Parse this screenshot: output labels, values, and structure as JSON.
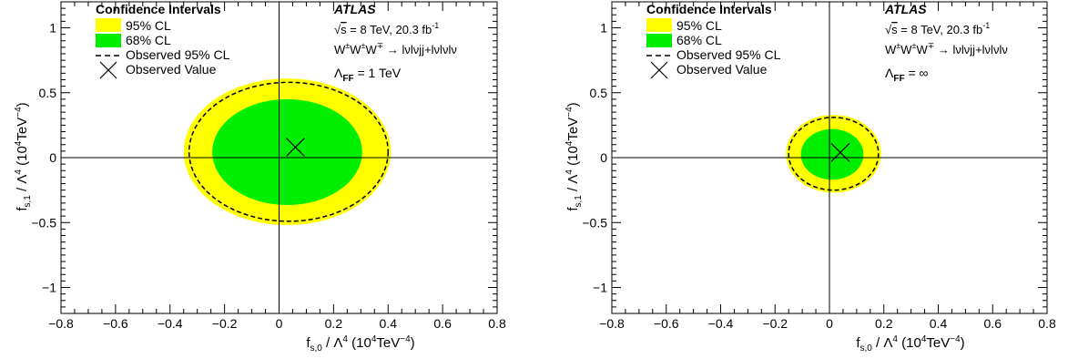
{
  "chart_data": [
    {
      "type": "contour",
      "xlabel": "f_{s,0} / Λ^4 (10^4TeV^-4)",
      "ylabel": "f_{s,1} / Λ^4 (10^4TeV^-4)",
      "xlim": [
        -0.8,
        0.8
      ],
      "ylim": [
        -1.2,
        1.2
      ],
      "xticks": [
        -0.8,
        -0.6,
        -0.4,
        -0.2,
        0,
        0.2,
        0.4,
        0.6,
        0.8
      ],
      "yticks": [
        -1,
        -0.5,
        0,
        0.5,
        1
      ],
      "legend": {
        "title": "Confidence Intervals",
        "entries": [
          "95% CL",
          "68% CL",
          "Observed 95% CL",
          "Observed Value"
        ],
        "placement": "top-left"
      },
      "annotations": {
        "experiment": "ATLAS",
        "energy": "√s = 8 TeV, 20.3 fb⁻¹",
        "process": "W±W±W∓ → lνlνjj+lνlνlν",
        "cutoff_label": "Λ",
        "cutoff_sub": "FF",
        "cutoff_value": "= 1 TeV"
      },
      "colors": {
        "cl95": "#ffff00",
        "cl68": "#00ee00",
        "observed": "#000000"
      },
      "regions": {
        "cl95": {
          "x_range": [
            -0.35,
            0.41
          ],
          "y_range": [
            -0.52,
            0.61
          ]
        },
        "cl68": {
          "x_range": [
            -0.245,
            0.305
          ],
          "y_range": [
            -0.365,
            0.45
          ]
        },
        "observed_95": {
          "x_range": [
            -0.33,
            0.4
          ],
          "y_range": [
            -0.49,
            0.58
          ]
        }
      },
      "observed_value": {
        "x": 0.06,
        "y": 0.08
      }
    },
    {
      "type": "contour",
      "xlabel": "f_{s,0} / Λ^4 (10^4TeV^-4)",
      "ylabel": "f_{s,1} / Λ^4 (10^4TeV^-4)",
      "xlim": [
        -0.8,
        0.8
      ],
      "ylim": [
        -1.2,
        1.2
      ],
      "xticks": [
        -0.8,
        -0.6,
        -0.4,
        -0.2,
        0,
        0.2,
        0.4,
        0.6,
        0.8
      ],
      "yticks": [
        -1,
        -0.5,
        0,
        0.5,
        1
      ],
      "legend": {
        "title": "Confidence Intervals",
        "entries": [
          "95% CL",
          "68% CL",
          "Observed 95% CL",
          "Observed Value"
        ],
        "placement": "top-left"
      },
      "annotations": {
        "experiment": "ATLAS",
        "energy": "√s = 8 TeV, 20.3 fb⁻¹",
        "process": "W±W±W∓ → lνlνjj+lνlνlν",
        "cutoff_label": "Λ",
        "cutoff_sub": "FF",
        "cutoff_value": "= ∞"
      },
      "colors": {
        "cl95": "#ffff00",
        "cl68": "#00ee00",
        "observed": "#000000"
      },
      "regions": {
        "cl95": {
          "x_range": [
            -0.16,
            0.19
          ],
          "y_range": [
            -0.27,
            0.33
          ]
        },
        "cl68": {
          "x_range": [
            -0.105,
            0.125
          ],
          "y_range": [
            -0.17,
            0.22
          ]
        },
        "observed_95": {
          "x_range": [
            -0.15,
            0.18
          ],
          "y_range": [
            -0.25,
            0.31
          ]
        }
      },
      "observed_value": {
        "x": 0.04,
        "y": 0.04
      }
    }
  ]
}
